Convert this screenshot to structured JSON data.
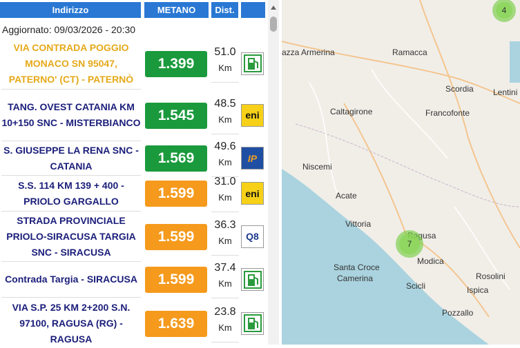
{
  "header": {
    "columns": [
      "Indirizzo",
      "METANO",
      "Dist."
    ]
  },
  "updated": "Aggiornato: 09/03/2026 - 20:30",
  "stations": [
    {
      "address": "VIA CONTRADA POGGIO MONACO SN 95047, PATERNO' (CT) - PATERNÒ",
      "price": "1.399",
      "distance": "51.0",
      "unit": "Km"
    },
    {
      "address": "TANG. OVEST CATANIA KM 10+150 SNC - MISTERBIANCO",
      "price": "1.545",
      "distance": "48.5",
      "unit": "Km",
      "logo": "eni"
    },
    {
      "address": "S. GIUSEPPE LA RENA SNC - CATANIA",
      "price": "1.569",
      "distance": "49.6",
      "unit": "Km",
      "logo": "IP"
    },
    {
      "address": "S.S. 114 KM 139 + 400 - PRIOLO GARGALLO",
      "price": "1.599",
      "distance": "31.0",
      "unit": "Km",
      "logo": "eni"
    },
    {
      "address": "STRADA PROVINCIALE PRIOLO-SIRACUSA TARGIA SNC - SIRACUSA",
      "price": "1.599",
      "distance": "36.3",
      "unit": "Km",
      "logo": "Q8"
    },
    {
      "address": "Contrada Targia - SIRACUSA",
      "price": "1.599",
      "distance": "37.4",
      "unit": "Km"
    },
    {
      "address": "VIA S.P. 25 KM 2+200 S.N. 97100, RAGUSA (RG) - RAGUSA",
      "price": "1.639",
      "distance": "23.8",
      "unit": "Km"
    }
  ],
  "map": {
    "places": [
      "azza Armerina",
      "Ramacca",
      "Scordia",
      "Lentini",
      "Caltagirone",
      "Francofonte",
      "Niscemi",
      "Acate",
      "Vittoria",
      "Ragusa",
      "Santa Croce",
      "Camerina",
      "Modica",
      "Scicli",
      "Rosolini",
      "Ispica",
      "Pozzallo"
    ],
    "clusters": [
      "4",
      "7"
    ]
  }
}
